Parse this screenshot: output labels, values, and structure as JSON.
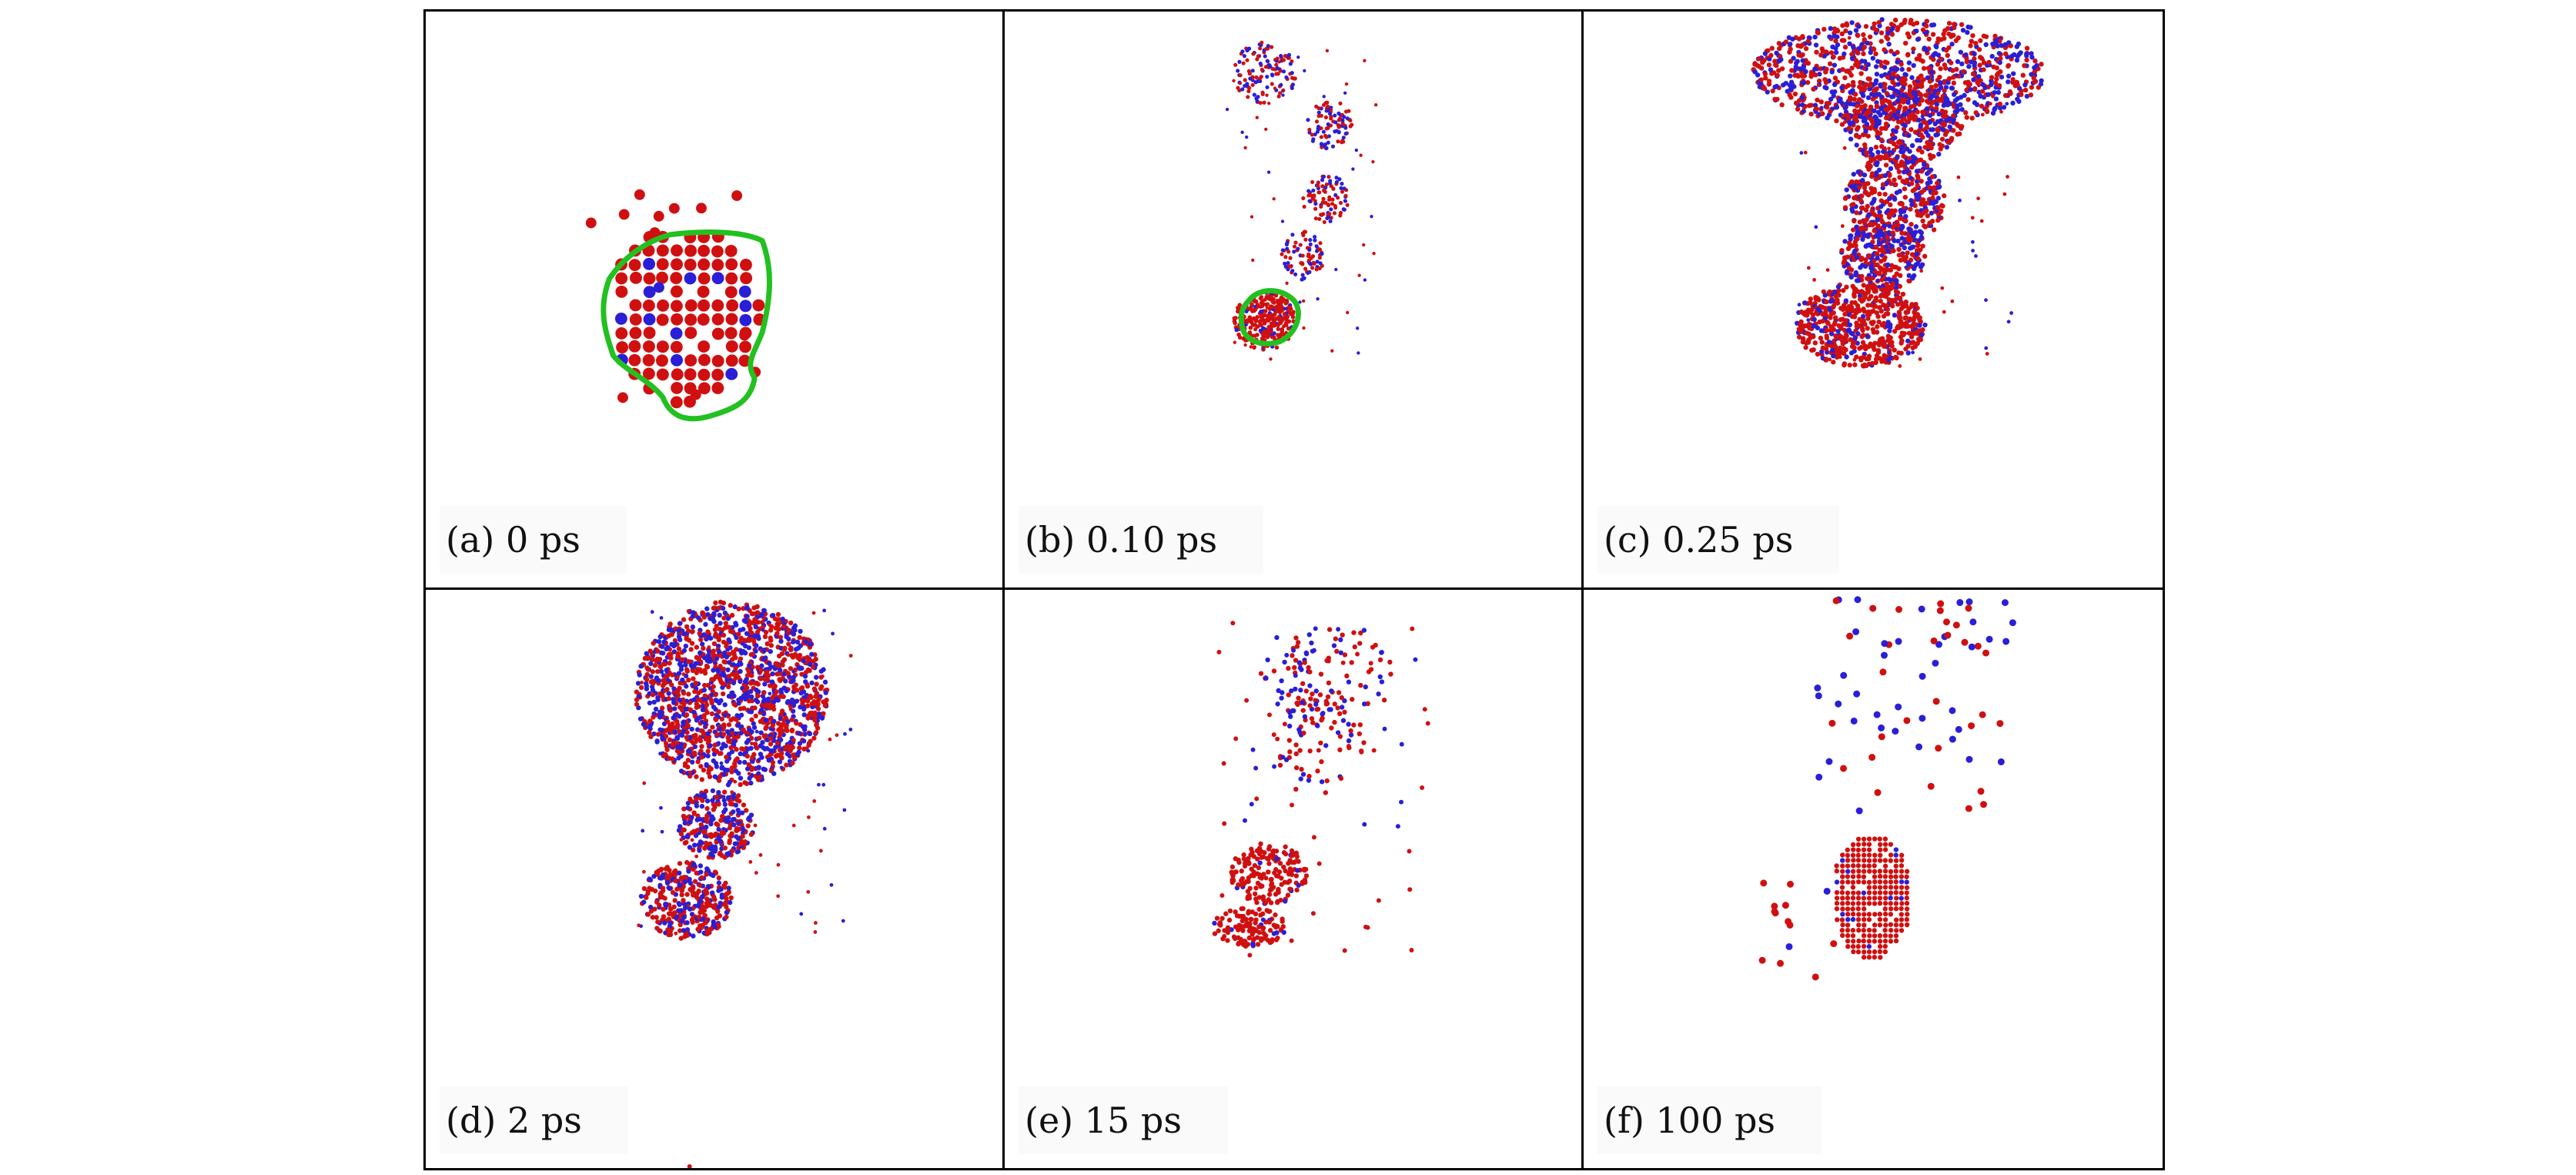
{
  "figure": {
    "panels": [
      {
        "id": "a",
        "label": "(a) 0 ps"
      },
      {
        "id": "b",
        "label": "(b) 0.10 ps"
      },
      {
        "id": "c",
        "label": "(c) 0.25 ps"
      },
      {
        "id": "d",
        "label": "(d) 2 ps"
      },
      {
        "id": "e",
        "label": "(e) 15 ps"
      },
      {
        "id": "f",
        "label": "(f) 100 ps"
      }
    ]
  },
  "colors": {
    "atom_primary": "#d01010",
    "atom_secondary": "#2a1fd6",
    "outline": "#22c020",
    "border": "#000000"
  }
}
